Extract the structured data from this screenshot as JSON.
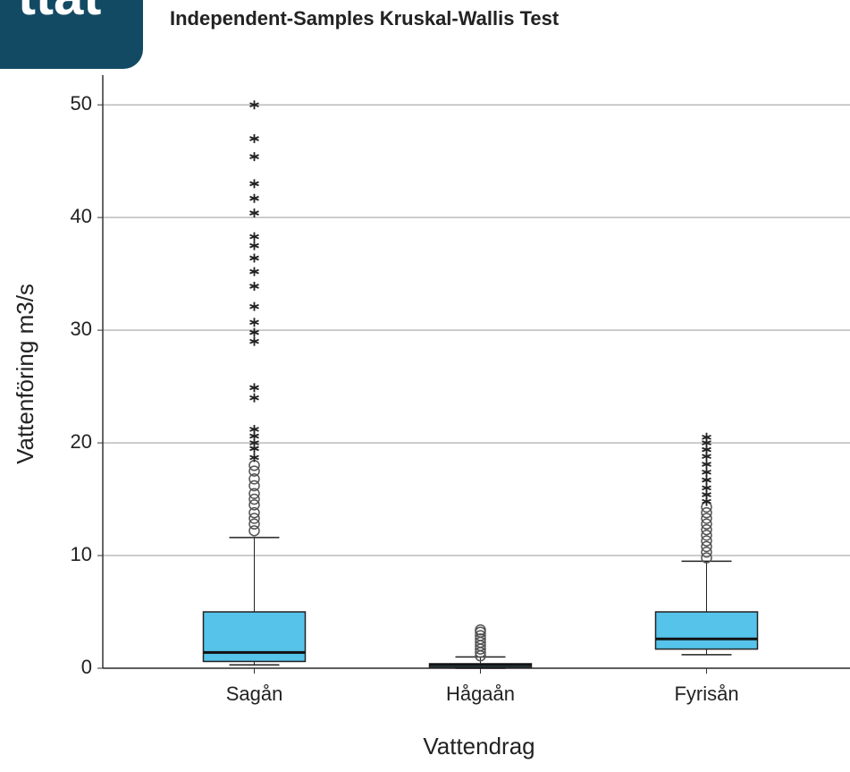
{
  "badge": "ttat",
  "chart_data": {
    "type": "box",
    "title": "Independent-Samples Kruskal-Wallis Test",
    "x_label": "Vattendrag",
    "y_label": "Vattenföring m3/s",
    "categories": [
      "Sagån",
      "Hågaån",
      "Fyrisån"
    ],
    "color": "#56c3ea",
    "ylim": [
      0,
      52
    ],
    "yticks": [
      0,
      10,
      20,
      30,
      40,
      50
    ],
    "grid": true,
    "boxes": [
      {
        "min": 0.3,
        "q1": 0.6,
        "median": 1.4,
        "q3": 5.0,
        "max": 11.6,
        "outliers_circle": [
          12.2,
          12.8,
          13.3,
          13.8,
          14.5,
          15.0,
          15.5,
          16.2,
          16.8,
          17.5,
          18.0
        ],
        "outliers_star": [
          18.7,
          19.5,
          20.0,
          20.6,
          21.2,
          24.0,
          24.9,
          29.0,
          29.8,
          30.7,
          32.1,
          33.9,
          35.2,
          36.4,
          37.5,
          38.3,
          40.4,
          41.7,
          43.0,
          45.4,
          47.0,
          50.0
        ]
      },
      {
        "min": 0,
        "q1": 0.1,
        "median": 0.3,
        "q3": 0.4,
        "max": 1.0,
        "outliers_circle": [
          1.1,
          1.4,
          1.7,
          2.0,
          2.3,
          2.6,
          2.9,
          3.2,
          3.4
        ],
        "outliers_star": []
      },
      {
        "min": 1.2,
        "q1": 1.7,
        "median": 2.6,
        "q3": 5.0,
        "max": 9.5,
        "outliers_circle": [
          9.8,
          10.3,
          10.8,
          11.3,
          11.8,
          12.3,
          12.8,
          13.3,
          13.8,
          14.3
        ],
        "outliers_star": [
          14.8,
          15.4,
          16.0,
          16.7,
          17.4,
          18.1,
          18.8,
          19.4,
          20.0,
          20.5
        ]
      }
    ]
  }
}
